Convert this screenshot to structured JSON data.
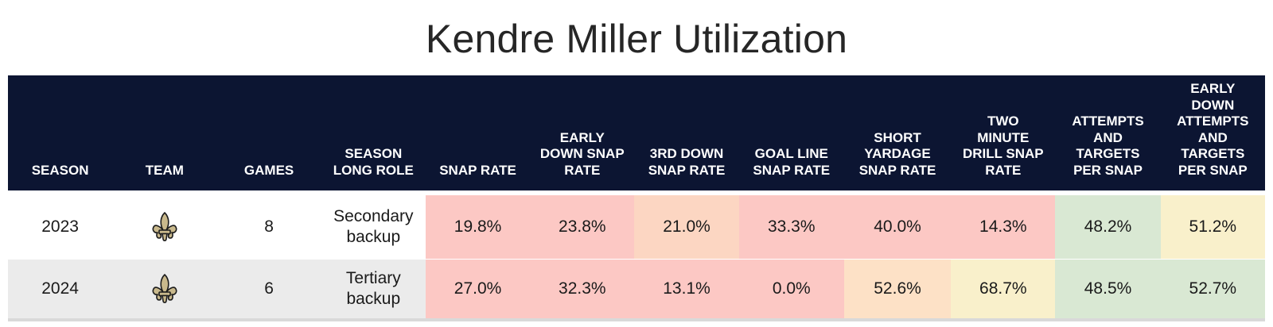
{
  "title": "Kendre Miller Utilization",
  "colors": {
    "header_bg": "#0c1532",
    "header_text": "#ffffff",
    "row_alt_bg": "#ebebeb",
    "red": "#fcc8c4",
    "orange": "#fcd6c2",
    "peach": "#fde1c6",
    "yellow": "#f9f0cb",
    "green": "#d9e8d3"
  },
  "chart_data": {
    "type": "table",
    "columns": [
      "SEASON",
      "TEAM",
      "GAMES",
      "SEASON\nLONG ROLE",
      "SNAP RATE",
      "EARLY\nDOWN SNAP\nRATE",
      "3RD DOWN\nSNAP RATE",
      "GOAL LINE\nSNAP RATE",
      "SHORT\nYARDAGE\nSNAP RATE",
      "TWO\nMINUTE\nDRILL SNAP\nRATE",
      "ATTEMPTS\nAND\nTARGETS\nPER SNAP",
      "EARLY\nDOWN\nATTEMPTS\nAND\nTARGETS\nPER SNAP"
    ],
    "rows": [
      {
        "season": "2023",
        "team_icon": "fleur-de-lis-icon",
        "games": "8",
        "role": "Secondary\nbackup",
        "snap_rate": "19.8%",
        "early_down_snap_rate": "23.8%",
        "third_down_snap_rate": "21.0%",
        "goal_line_snap_rate": "33.3%",
        "short_yardage_snap_rate": "40.0%",
        "two_minute_snap_rate": "14.3%",
        "att_tgt_per_snap": "48.2%",
        "early_down_att_tgt_per_snap": "51.2%"
      },
      {
        "season": "2024",
        "team_icon": "fleur-de-lis-icon",
        "games": "6",
        "role": "Tertiary\nbackup",
        "snap_rate": "27.0%",
        "early_down_snap_rate": "32.3%",
        "third_down_snap_rate": "13.1%",
        "goal_line_snap_rate": "0.0%",
        "short_yardage_snap_rate": "52.6%",
        "two_minute_snap_rate": "68.7%",
        "att_tgt_per_snap": "48.5%",
        "early_down_att_tgt_per_snap": "52.7%"
      }
    ],
    "cell_colors": [
      [
        "#fcc8c4",
        "#fcc8c4",
        "#fcd6c2",
        "#fcc8c4",
        "#fcc8c4",
        "#fcc8c4",
        "#d9e8d3",
        "#f9f0cb"
      ],
      [
        "#fcc8c4",
        "#fcc8c4",
        "#fcc8c4",
        "#fcc8c4",
        "#fde1c6",
        "#f9f0cb",
        "#d9e8d3",
        "#d9e8d3"
      ]
    ]
  }
}
